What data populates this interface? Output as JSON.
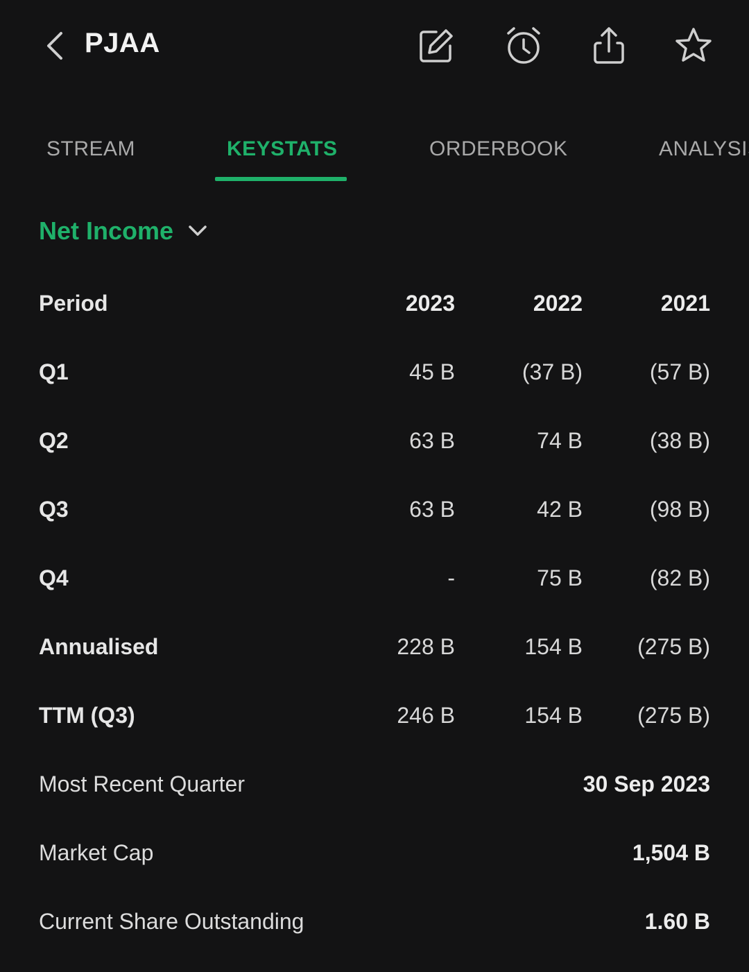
{
  "header": {
    "ticker": "PJAA",
    "icons": [
      "back-chevron-icon",
      "edit-icon",
      "alarm-clock-icon",
      "share-icon",
      "star-icon"
    ]
  },
  "tabs": [
    {
      "label": "STREAM",
      "active": false
    },
    {
      "label": "KEYSTATS",
      "active": true
    },
    {
      "label": "ORDERBOOK",
      "active": false
    },
    {
      "label": "ANALYSIS",
      "active": false
    }
  ],
  "metric": {
    "label": "Net Income"
  },
  "table": {
    "header": {
      "label": "Period",
      "cols": [
        "2023",
        "2022",
        "2021"
      ]
    },
    "rows": [
      {
        "label": "Q1",
        "values": [
          "45 B",
          "(37 B)",
          "(57 B)"
        ]
      },
      {
        "label": "Q2",
        "values": [
          "63 B",
          "74 B",
          "(38 B)"
        ]
      },
      {
        "label": "Q3",
        "values": [
          "63 B",
          "42 B",
          "(98 B)"
        ]
      },
      {
        "label": "Q4",
        "values": [
          "-",
          "75 B",
          "(82 B)"
        ]
      },
      {
        "label": "Annualised",
        "values": [
          "228 B",
          "154 B",
          "(275 B)"
        ]
      },
      {
        "label": "TTM (Q3)",
        "values": [
          "246 B",
          "154 B",
          "(275 B)"
        ]
      }
    ]
  },
  "summary": [
    {
      "label": "Most Recent Quarter",
      "value": "30 Sep 2023"
    },
    {
      "label": "Market Cap",
      "value": "1,504 B"
    },
    {
      "label": "Current Share Outstanding",
      "value": "1.60 B"
    }
  ],
  "colors": {
    "background": "#131314",
    "accent": "#1fb16a",
    "text": "#e8e8e8",
    "muted": "#a9a9a9"
  }
}
